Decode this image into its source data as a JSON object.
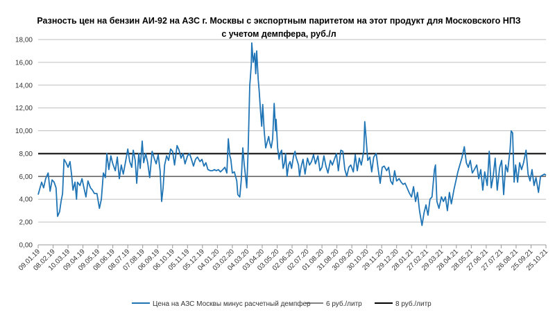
{
  "chart_data": {
    "type": "line",
    "title": [
      "Разность цен на бензин АИ-92 на АЗС г. Москвы с экспортным паритетом на этот продукт для Московского НПЗ",
      "с учетом демпфера, руб./л"
    ],
    "xlabel": "",
    "ylabel": "",
    "ylim": [
      0,
      18
    ],
    "xlim_days": [
      0,
      1020
    ],
    "grid": true,
    "legend_position": "bottom",
    "y_ticks": [
      "0,00",
      "2,00",
      "4,00",
      "6,00",
      "8,00",
      "10,00",
      "12,00",
      "14,00",
      "16,00",
      "18,00"
    ],
    "x_tick_step_days": 30,
    "x_ticks": [
      "09.01.19",
      "08.02.19",
      "10.03.19",
      "09.04.19",
      "09.05.19",
      "08.06.19",
      "08.07.19",
      "07.08.19",
      "06.09.19",
      "06.10.19",
      "05.11.19",
      "05.12.19",
      "04.01.20",
      "03.02.20",
      "04.03.20",
      "03.04.20",
      "03.05.20",
      "02.06.20",
      "02.07.20",
      "01.08.20",
      "31.08.20",
      "30.09.20",
      "30.10.20",
      "29.11.20",
      "29.12.20",
      "28.01.21",
      "27.02.21",
      "29.03.21",
      "28.04.21",
      "28.05.21",
      "27.06.21",
      "27.07.21",
      "26.08.21",
      "25.09.21",
      "25.10.21"
    ],
    "series": [
      {
        "name": "Цена на АЗС Москвы минус расчетный демпфер",
        "color": "#1f74b5",
        "x_days": [
          0,
          7,
          11,
          15,
          20,
          24,
          28,
          32,
          36,
          39,
          43,
          46,
          49,
          52,
          56,
          60,
          64,
          67,
          70,
          74,
          77,
          79,
          84,
          88,
          92,
          96,
          100,
          105,
          109,
          113,
          118,
          123,
          127,
          131,
          135,
          138,
          142,
          146,
          150,
          155,
          159,
          163,
          167,
          171,
          176,
          180,
          184,
          188,
          191,
          195,
          198,
          202,
          205,
          209,
          212,
          216,
          220,
          224,
          229,
          233,
          237,
          241,
          245,
          248,
          251,
          254,
          258,
          262,
          266,
          270,
          274,
          279,
          283,
          287,
          291,
          295,
          300,
          304,
          308,
          312,
          316,
          320,
          325,
          329,
          333,
          337,
          341,
          346,
          350,
          354,
          358,
          362,
          366,
          371,
          375,
          379,
          382,
          385,
          387,
          390,
          394,
          399,
          401,
          405,
          408,
          411,
          414,
          417,
          419,
          422,
          425,
          426,
          428,
          429,
          432,
          435,
          437,
          439,
          442,
          444,
          447,
          449,
          451,
          454,
          457,
          460,
          463,
          465,
          468,
          471,
          474,
          477,
          478,
          481,
          484,
          486,
          489,
          492,
          495,
          497,
          500,
          503,
          506,
          509,
          513,
          516,
          518,
          523,
          525,
          528,
          532,
          536,
          541,
          545,
          549,
          553,
          557,
          562,
          566,
          570,
          574,
          578,
          582,
          587,
          591,
          595,
          599,
          603,
          608,
          612,
          616,
          620,
          624,
          628,
          633,
          637,
          641,
          645,
          649,
          654,
          656,
          659,
          662,
          666,
          670,
          674,
          679,
          683,
          687,
          691,
          695,
          700,
          704,
          708,
          712,
          716,
          720,
          725,
          729,
          733,
          737,
          741,
          745,
          750,
          754,
          758,
          762,
          766,
          771,
          775,
          779,
          783,
          787,
          791,
          796,
          798,
          801,
          805,
          810,
          814,
          818,
          822,
          826,
          830,
          835,
          839,
          843,
          847,
          851,
          856,
          860,
          864,
          868,
          872,
          876,
          881,
          885,
          889,
          893,
          897,
          902,
          906,
          910,
          914,
          918,
          922,
          927,
          931,
          935,
          939,
          943,
          948,
          950,
          953,
          956,
          959,
          963,
          967,
          971,
          975,
          980,
          984,
          988,
          992,
          996,
          1000,
          1005,
          1009,
          1013,
          1017,
          1020
        ],
        "values": [
          4.4,
          5.5,
          5.0,
          5.8,
          6.3,
          4.7,
          5.7,
          5.5,
          5.0,
          2.5,
          2.9,
          3.8,
          4.5,
          7.5,
          7.2,
          6.8,
          7.3,
          6.2,
          4.8,
          5.5,
          4.0,
          5.5,
          5.2,
          5.8,
          5.0,
          4.2,
          5.6,
          5.0,
          4.8,
          4.5,
          4.5,
          3.2,
          4.0,
          6.3,
          5.9,
          8.0,
          6.6,
          7.8,
          7.1,
          6.5,
          7.7,
          5.8,
          7.0,
          6.2,
          7.4,
          8.4,
          7.3,
          6.8,
          8.3,
          7.4,
          5.4,
          8.0,
          6.7,
          9.1,
          7.2,
          8.0,
          7.2,
          5.9,
          8.2,
          7.6,
          7.1,
          7.9,
          6.5,
          3.8,
          5.0,
          7.0,
          7.8,
          7.4,
          8.4,
          8.2,
          7.0,
          8.7,
          8.3,
          7.6,
          8.0,
          7.1,
          7.8,
          8.0,
          7.5,
          6.9,
          7.5,
          7.7,
          7.3,
          7.5,
          6.9,
          7.2,
          6.6,
          6.5,
          6.5,
          6.6,
          6.5,
          6.6,
          6.4,
          6.6,
          6.8,
          6.3,
          9.3,
          7.8,
          7.5,
          6.3,
          6.4,
          5.6,
          4.4,
          4.2,
          5.7,
          8.5,
          7.0,
          5.8,
          5.0,
          8.5,
          14.0,
          14.5,
          15.8,
          17.7,
          16.0,
          16.8,
          15.0,
          17.0,
          14.5,
          13.5,
          11.5,
          10.4,
          12.3,
          10.0,
          8.5,
          9.0,
          9.5,
          9.0,
          8.5,
          9.3,
          12.4,
          10.0,
          11.0,
          8.5,
          7.5,
          8.0,
          8.3,
          6.7,
          7.2,
          8.0,
          6.0,
          7.0,
          7.3,
          6.7,
          7.8,
          8.2,
          7.7,
          7.0,
          6.0,
          6.8,
          7.5,
          6.2,
          7.6,
          7.0,
          7.3,
          7.9,
          7.1,
          7.8,
          6.5,
          6.8,
          7.8,
          6.9,
          6.3,
          7.4,
          7.0,
          7.5,
          8.0,
          6.5,
          8.3,
          8.2,
          6.6,
          6.0,
          6.8,
          7.0,
          6.4,
          7.9,
          6.5,
          7.6,
          7.0,
          8.2,
          10.8,
          9.2,
          7.4,
          7.7,
          6.4,
          7.7,
          8.0,
          6.6,
          5.4,
          6.8,
          6.9,
          6.5,
          6.8,
          5.6,
          5.3,
          6.5,
          5.6,
          5.8,
          5.5,
          5.3,
          5.4,
          5.0,
          4.6,
          4.2,
          5.1,
          3.8,
          4.6,
          3.0,
          1.7,
          2.8,
          3.5,
          2.6,
          4.0,
          4.2,
          6.6,
          7.0,
          3.8,
          3.2,
          4.2,
          3.8,
          4.2,
          3.0,
          4.6,
          3.6,
          4.8,
          5.6,
          6.4,
          7.0,
          7.6,
          8.6,
          7.2,
          6.8,
          7.4,
          6.3,
          6.6,
          7.0,
          5.8,
          6.6,
          4.8,
          6.4,
          5.2,
          8.2,
          5.0,
          6.0,
          7.6,
          4.8,
          6.8,
          7.4,
          4.4,
          7.0,
          6.4,
          8.4,
          10.0,
          9.8,
          5.5,
          7.0,
          5.5,
          7.2,
          6.6,
          7.2,
          8.3,
          6.2,
          5.6,
          6.6,
          5.2,
          5.9,
          4.6,
          6.0,
          6.1,
          6.2,
          6.1
        ]
      },
      {
        "name": "6 руб./литр",
        "color": "#595959",
        "value": 6
      },
      {
        "name": "8 руб./литр",
        "color": "#000000",
        "value": 8
      }
    ]
  }
}
